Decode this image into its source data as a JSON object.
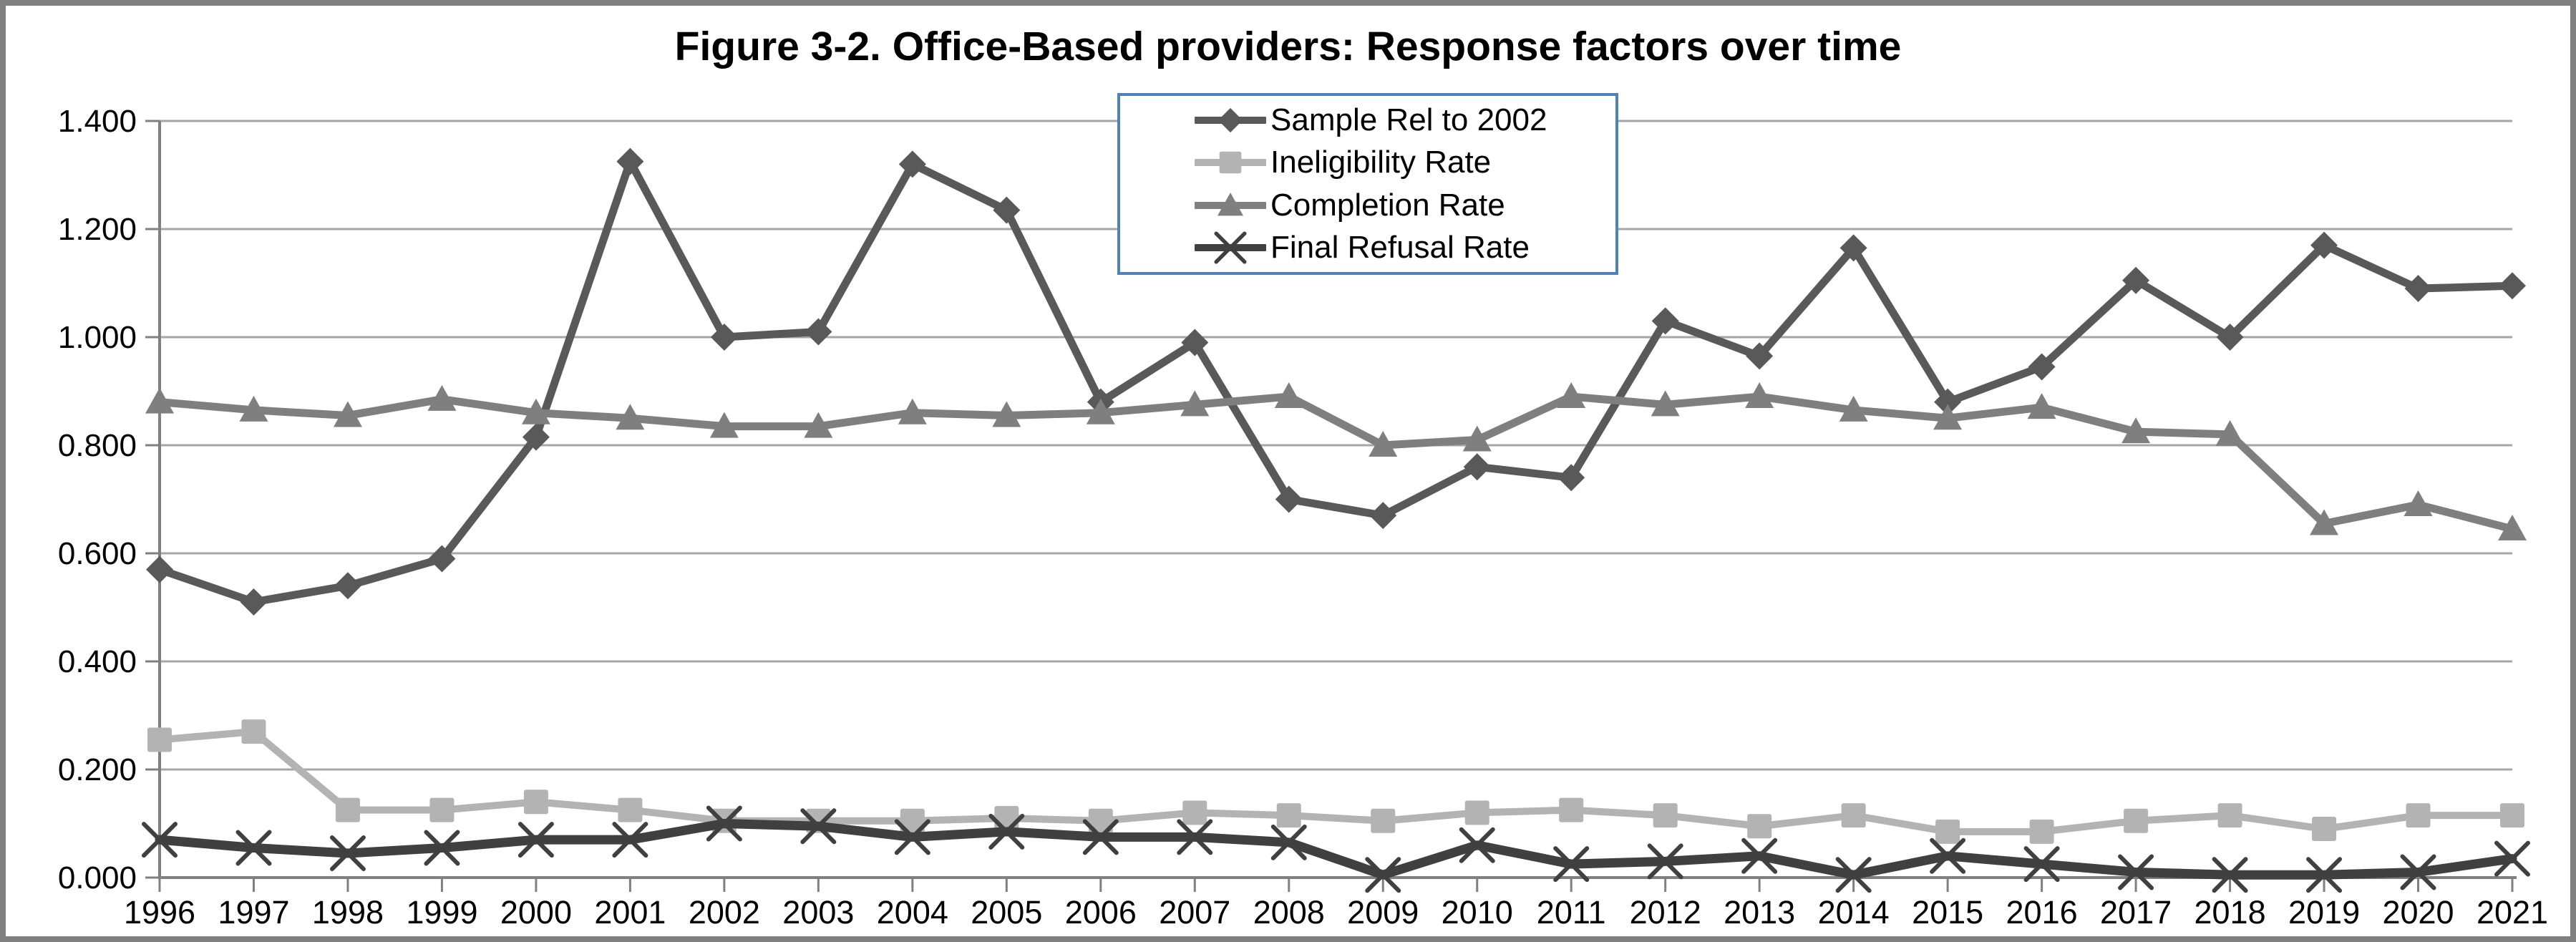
{
  "title": "Figure 3-2. Office-Based providers: Response factors over time",
  "colors": {
    "grid": "#A6A6A6",
    "axis": "#808080",
    "tick_text": "#000000",
    "legend_border": "#4F81BD",
    "figure_border": "#808080",
    "background": "#FFFFFF"
  },
  "chart_data": {
    "type": "line",
    "title": "Figure 3-2. Office-Based providers: Response factors over time",
    "xlabel": "",
    "ylabel": "",
    "x": [
      1996,
      1997,
      1998,
      1999,
      2000,
      2001,
      2002,
      2003,
      2004,
      2005,
      2006,
      2007,
      2008,
      2009,
      2010,
      2011,
      2012,
      2013,
      2014,
      2015,
      2016,
      2017,
      2018,
      2019,
      2020,
      2021
    ],
    "ylim": [
      0,
      1.4
    ],
    "y_tick_step": 0.2,
    "y_tick_labels": [
      "0.000",
      "0.200",
      "0.400",
      "0.600",
      "0.800",
      "1.000",
      "1.200",
      "1.400"
    ],
    "grid": true,
    "legend_position": "top-center",
    "series": [
      {
        "name": "Sample Rel to 2002",
        "marker": "diamond",
        "color": "#595959",
        "line_width": 11,
        "values": [
          0.57,
          0.51,
          0.54,
          0.59,
          0.815,
          1.325,
          1.0,
          1.01,
          1.32,
          1.235,
          0.88,
          0.99,
          0.7,
          0.67,
          0.76,
          0.74,
          1.03,
          0.965,
          1.165,
          0.88,
          0.945,
          1.105,
          1.0,
          1.17,
          1.09,
          1.095
        ]
      },
      {
        "name": "Ineligibility Rate",
        "marker": "square",
        "color": "#B3B3B3",
        "line_width": 10,
        "values": [
          0.255,
          0.27,
          0.125,
          0.125,
          0.14,
          0.125,
          0.105,
          0.105,
          0.105,
          0.11,
          0.105,
          0.12,
          0.115,
          0.105,
          0.12,
          0.125,
          0.115,
          0.095,
          0.115,
          0.085,
          0.085,
          0.105,
          0.115,
          0.09,
          0.115,
          0.115
        ]
      },
      {
        "name": "Completion Rate",
        "marker": "triangle",
        "color": "#7F7F7F",
        "line_width": 11,
        "values": [
          0.88,
          0.865,
          0.855,
          0.885,
          0.86,
          0.85,
          0.835,
          0.835,
          0.86,
          0.855,
          0.86,
          0.875,
          0.89,
          0.8,
          0.81,
          0.89,
          0.875,
          0.89,
          0.865,
          0.85,
          0.87,
          0.825,
          0.82,
          0.655,
          0.69,
          0.645
        ]
      },
      {
        "name": "Final Refusal Rate",
        "marker": "x",
        "color": "#404040",
        "line_width": 13,
        "values": [
          0.07,
          0.055,
          0.045,
          0.055,
          0.07,
          0.07,
          0.1,
          0.095,
          0.075,
          0.085,
          0.075,
          0.075,
          0.065,
          0.005,
          0.06,
          0.025,
          0.03,
          0.04,
          0.005,
          0.04,
          0.025,
          0.01,
          0.005,
          0.005,
          0.01,
          0.035
        ]
      }
    ]
  }
}
